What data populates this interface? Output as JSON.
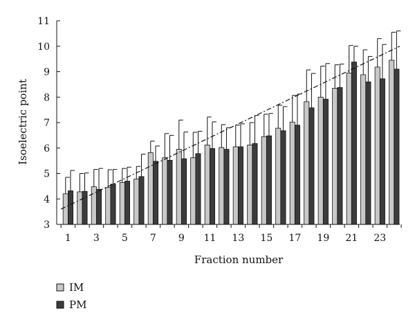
{
  "chart_data": {
    "type": "bar",
    "title": "",
    "xlabel": "Fraction number",
    "ylabel": "Isoelectric point",
    "ylim": [
      3,
      11
    ],
    "y_ticks": [
      3,
      4,
      5,
      6,
      7,
      8,
      9,
      10,
      11
    ],
    "categories": [
      1,
      2,
      3,
      4,
      5,
      6,
      7,
      8,
      9,
      10,
      11,
      12,
      13,
      14,
      15,
      16,
      17,
      18,
      19,
      20,
      21,
      22,
      23,
      24
    ],
    "x_tick_labels": [
      "1",
      "3",
      "5",
      "7",
      "9",
      "11",
      "13",
      "15",
      "17",
      "19",
      "21",
      "23"
    ],
    "legend_position": "bottom-left",
    "grid": false,
    "series": [
      {
        "name": "IM",
        "color": "#c8c8c8",
        "values": [
          4.2,
          4.28,
          4.48,
          4.45,
          4.65,
          4.78,
          5.82,
          5.62,
          5.95,
          5.62,
          6.12,
          6.02,
          6.05,
          6.12,
          6.45,
          6.78,
          7.02,
          7.82,
          8.0,
          8.35,
          8.95,
          8.88,
          9.18,
          9.45
        ],
        "errors": [
          0.65,
          0.72,
          0.68,
          0.7,
          0.55,
          0.5,
          0.45,
          0.95,
          1.15,
          1.0,
          1.1,
          0.9,
          0.85,
          0.88,
          0.88,
          0.9,
          1.05,
          1.25,
          1.22,
          0.92,
          1.08,
          0.98,
          1.12,
          1.1
        ]
      },
      {
        "name": "PM",
        "color": "#3c3c3c",
        "values": [
          4.32,
          4.3,
          4.38,
          4.58,
          4.7,
          4.88,
          5.48,
          5.52,
          5.58,
          5.78,
          5.98,
          5.95,
          6.05,
          6.18,
          6.48,
          6.68,
          6.9,
          7.58,
          7.92,
          8.38,
          9.38,
          8.6,
          8.72,
          9.1
        ],
        "errors": [
          0.8,
          0.72,
          0.82,
          0.58,
          0.55,
          0.88,
          0.6,
          0.98,
          1.05,
          0.88,
          1.05,
          0.85,
          0.9,
          1.1,
          0.88,
          0.95,
          1.22,
          1.35,
          1.4,
          0.92,
          0.62,
          1.0,
          1.35,
          1.5
        ]
      }
    ],
    "trend_line": {
      "style": "dash-dot",
      "x_start": 0.5,
      "y_start": 3.6,
      "x_end": 24.4,
      "y_end": 10.0
    }
  }
}
